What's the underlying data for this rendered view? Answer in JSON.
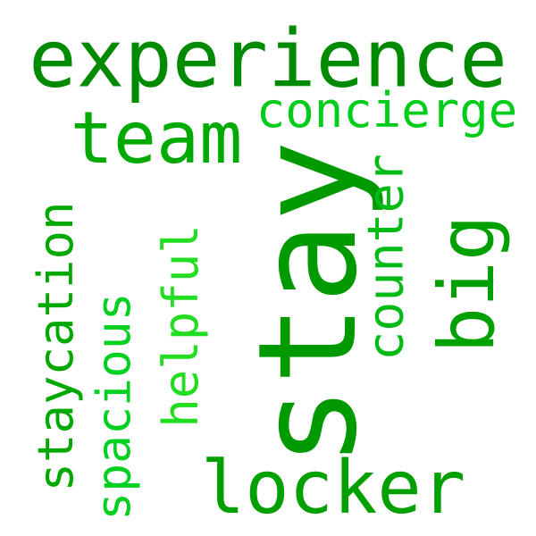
{
  "words": [
    {
      "key": "experience",
      "text": "experience",
      "color": "#008a00"
    },
    {
      "key": "team",
      "text": "team",
      "color": "#00aa00"
    },
    {
      "key": "concierge",
      "text": "concierge",
      "color": "#00cc1a"
    },
    {
      "key": "stay",
      "text": "stay",
      "color": "#009a00"
    },
    {
      "key": "counter",
      "text": "counter",
      "color": "#00bb16"
    },
    {
      "key": "big",
      "text": "big",
      "color": "#00a000"
    },
    {
      "key": "staycation",
      "text": "staycation",
      "color": "#00a800"
    },
    {
      "key": "helpful",
      "text": "helpful",
      "color": "#22dd22"
    },
    {
      "key": "spacious",
      "text": "spacious",
      "color": "#00d020"
    },
    {
      "key": "locker",
      "text": "locker",
      "color": "#00a000"
    }
  ]
}
